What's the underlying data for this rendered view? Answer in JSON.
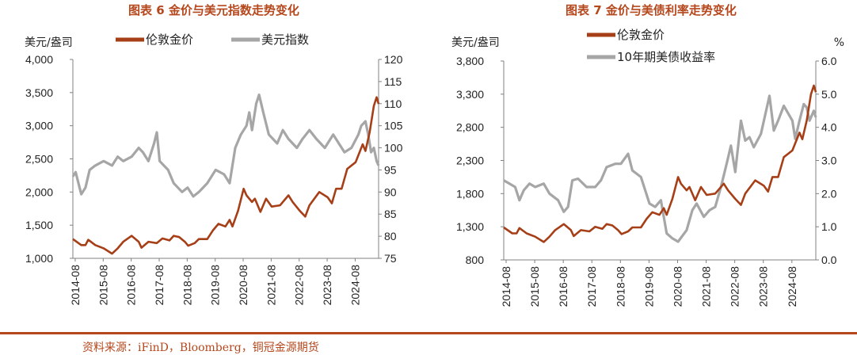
{
  "titles": {
    "chart1": "图表 6  金价与美元指数走势变化",
    "chart2": "图表 7 金价与美债利率走势变化"
  },
  "source": "资料来源：iFinD，Bloomberg，铜冠金源期货",
  "colors": {
    "gold": "#a63f17",
    "gray": "#a6a6a6",
    "title": "#b5471d"
  },
  "chart_data": [
    {
      "type": "line",
      "left_unit": "美元/盎司",
      "right_unit": "",
      "legend": [
        "伦敦金价",
        "美元指数"
      ],
      "x_ticks": [
        "2014-08",
        "2015-08",
        "2016-08",
        "2017-08",
        "2018-08",
        "2019-08",
        "2020-08",
        "2021-08",
        "2022-08",
        "2023-08",
        "2024-08"
      ],
      "x_range": [
        2014.5,
        2025.42
      ],
      "left_axis": {
        "ticks": [
          "1,000",
          "1,500",
          "2,000",
          "2,500",
          "3,000",
          "3,500",
          "4,000"
        ],
        "range": [
          1000,
          4000
        ]
      },
      "right_axis": {
        "ticks": [
          "75",
          "80",
          "85",
          "90",
          "95",
          "100",
          "105",
          "110",
          "115",
          "120"
        ],
        "range": [
          75,
          120
        ]
      },
      "series": [
        {
          "name": "伦敦金价",
          "axis": "left",
          "points": [
            [
              2014.5,
              1290
            ],
            [
              2014.8,
              1200
            ],
            [
              2014.95,
              1200
            ],
            [
              2015.05,
              1280
            ],
            [
              2015.3,
              1200
            ],
            [
              2015.6,
              1150
            ],
            [
              2015.9,
              1070
            ],
            [
              2016.1,
              1150
            ],
            [
              2016.3,
              1250
            ],
            [
              2016.6,
              1340
            ],
            [
              2016.85,
              1250
            ],
            [
              2016.95,
              1160
            ],
            [
              2017.2,
              1250
            ],
            [
              2017.5,
              1230
            ],
            [
              2017.7,
              1300
            ],
            [
              2017.95,
              1270
            ],
            [
              2018.1,
              1340
            ],
            [
              2018.3,
              1320
            ],
            [
              2018.5,
              1250
            ],
            [
              2018.62,
              1190
            ],
            [
              2018.85,
              1230
            ],
            [
              2019.0,
              1290
            ],
            [
              2019.3,
              1290
            ],
            [
              2019.5,
              1420
            ],
            [
              2019.7,
              1520
            ],
            [
              2019.95,
              1480
            ],
            [
              2020.1,
              1580
            ],
            [
              2020.2,
              1480
            ],
            [
              2020.4,
              1720
            ],
            [
              2020.6,
              2050
            ],
            [
              2020.7,
              1950
            ],
            [
              2020.9,
              1850
            ],
            [
              2021.0,
              1900
            ],
            [
              2021.2,
              1700
            ],
            [
              2021.4,
              1900
            ],
            [
              2021.6,
              1780
            ],
            [
              2021.9,
              1800
            ],
            [
              2022.2,
              1950
            ],
            [
              2022.35,
              1850
            ],
            [
              2022.6,
              1720
            ],
            [
              2022.8,
              1630
            ],
            [
              2022.95,
              1800
            ],
            [
              2023.3,
              2000
            ],
            [
              2023.6,
              1920
            ],
            [
              2023.75,
              1830
            ],
            [
              2023.9,
              2050
            ],
            [
              2024.1,
              2050
            ],
            [
              2024.3,
              2350
            ],
            [
              2024.6,
              2450
            ],
            [
              2024.85,
              2720
            ],
            [
              2024.95,
              2620
            ],
            [
              2025.1,
              2900
            ],
            [
              2025.25,
              3300
            ],
            [
              2025.35,
              3430
            ],
            [
              2025.42,
              3330
            ]
          ]
        },
        {
          "name": "美元指数",
          "axis": "right",
          "points": [
            [
              2014.5,
              93.5
            ],
            [
              2014.6,
              94.5
            ],
            [
              2014.8,
              89.5
            ],
            [
              2014.95,
              91
            ],
            [
              2015.1,
              95
            ],
            [
              2015.3,
              96
            ],
            [
              2015.6,
              97
            ],
            [
              2015.9,
              96
            ],
            [
              2016.1,
              98
            ],
            [
              2016.3,
              97
            ],
            [
              2016.6,
              98
            ],
            [
              2016.85,
              100
            ],
            [
              2017.0,
              99
            ],
            [
              2017.2,
              97
            ],
            [
              2017.4,
              101
            ],
            [
              2017.5,
              103.5
            ],
            [
              2017.6,
              97
            ],
            [
              2017.9,
              95
            ],
            [
              2018.1,
              92
            ],
            [
              2018.4,
              90
            ],
            [
              2018.6,
              91
            ],
            [
              2018.8,
              89
            ],
            [
              2019.0,
              90
            ],
            [
              2019.3,
              92
            ],
            [
              2019.6,
              95
            ],
            [
              2019.9,
              94
            ],
            [
              2020.1,
              92
            ],
            [
              2020.3,
              100
            ],
            [
              2020.5,
              103
            ],
            [
              2020.7,
              105
            ],
            [
              2020.8,
              108
            ],
            [
              2020.9,
              104
            ],
            [
              2021.05,
              110
            ],
            [
              2021.15,
              112
            ],
            [
              2021.3,
              108
            ],
            [
              2021.5,
              103
            ],
            [
              2021.8,
              101
            ],
            [
              2022.0,
              104
            ],
            [
              2022.2,
              102
            ],
            [
              2022.5,
              100
            ],
            [
              2022.7,
              102
            ],
            [
              2022.95,
              104
            ],
            [
              2023.2,
              102
            ],
            [
              2023.5,
              100
            ],
            [
              2023.8,
              103
            ],
            [
              2024.0,
              101
            ],
            [
              2024.2,
              99
            ],
            [
              2024.45,
              100
            ],
            [
              2024.7,
              103
            ],
            [
              2024.8,
              105
            ],
            [
              2024.95,
              106
            ],
            [
              2025.05,
              103
            ],
            [
              2025.15,
              99
            ],
            [
              2025.25,
              100
            ],
            [
              2025.35,
              97
            ],
            [
              2025.42,
              96
            ]
          ]
        }
      ]
    },
    {
      "type": "line",
      "left_unit": "美元/盎司",
      "right_unit": "%",
      "legend": [
        "伦敦金价",
        "10年期美债收益率"
      ],
      "x_ticks": [
        "2014-08",
        "2015-08",
        "2016-08",
        "2017-08",
        "2018-08",
        "2019-08",
        "2020-08",
        "2021-08",
        "2022-08",
        "2023-08",
        "2024-08"
      ],
      "x_range": [
        2014.5,
        2025.42
      ],
      "left_axis": {
        "ticks": [
          "800",
          "1,300",
          "1,800",
          "2,300",
          "2,800",
          "3,300",
          "3,800"
        ],
        "range": [
          800,
          3800
        ]
      },
      "right_axis": {
        "ticks": [
          "0.0",
          "1.0",
          "2.0",
          "3.0",
          "4.0",
          "5.0",
          "6.0"
        ],
        "range": [
          0,
          6
        ]
      },
      "series": [
        {
          "name": "伦敦金价",
          "axis": "left",
          "points": [
            [
              2014.5,
              1290
            ],
            [
              2014.8,
              1200
            ],
            [
              2014.95,
              1200
            ],
            [
              2015.05,
              1280
            ],
            [
              2015.3,
              1200
            ],
            [
              2015.6,
              1150
            ],
            [
              2015.9,
              1070
            ],
            [
              2016.1,
              1150
            ],
            [
              2016.3,
              1250
            ],
            [
              2016.6,
              1340
            ],
            [
              2016.85,
              1250
            ],
            [
              2016.95,
              1160
            ],
            [
              2017.2,
              1250
            ],
            [
              2017.5,
              1230
            ],
            [
              2017.7,
              1300
            ],
            [
              2017.95,
              1270
            ],
            [
              2018.1,
              1340
            ],
            [
              2018.3,
              1320
            ],
            [
              2018.5,
              1250
            ],
            [
              2018.62,
              1190
            ],
            [
              2018.85,
              1230
            ],
            [
              2019.0,
              1290
            ],
            [
              2019.3,
              1290
            ],
            [
              2019.5,
              1420
            ],
            [
              2019.7,
              1520
            ],
            [
              2019.95,
              1480
            ],
            [
              2020.1,
              1580
            ],
            [
              2020.2,
              1480
            ],
            [
              2020.4,
              1720
            ],
            [
              2020.6,
              2050
            ],
            [
              2020.7,
              1950
            ],
            [
              2020.9,
              1850
            ],
            [
              2021.0,
              1900
            ],
            [
              2021.2,
              1700
            ],
            [
              2021.4,
              1900
            ],
            [
              2021.6,
              1780
            ],
            [
              2021.9,
              1800
            ],
            [
              2022.2,
              1950
            ],
            [
              2022.35,
              1850
            ],
            [
              2022.6,
              1720
            ],
            [
              2022.8,
              1630
            ],
            [
              2022.95,
              1800
            ],
            [
              2023.3,
              2000
            ],
            [
              2023.6,
              1920
            ],
            [
              2023.75,
              1830
            ],
            [
              2023.9,
              2050
            ],
            [
              2024.1,
              2050
            ],
            [
              2024.3,
              2350
            ],
            [
              2024.6,
              2450
            ],
            [
              2024.85,
              2720
            ],
            [
              2024.95,
              2620
            ],
            [
              2025.1,
              2900
            ],
            [
              2025.25,
              3300
            ],
            [
              2025.35,
              3430
            ],
            [
              2025.42,
              3330
            ]
          ]
        },
        {
          "name": "10年期美债收益率",
          "axis": "right",
          "points": [
            [
              2014.5,
              2.4
            ],
            [
              2014.7,
              2.3
            ],
            [
              2014.9,
              2.2
            ],
            [
              2015.05,
              1.8
            ],
            [
              2015.2,
              2.1
            ],
            [
              2015.4,
              2.3
            ],
            [
              2015.6,
              2.2
            ],
            [
              2015.9,
              2.3
            ],
            [
              2016.1,
              2.0
            ],
            [
              2016.4,
              1.8
            ],
            [
              2016.6,
              1.45
            ],
            [
              2016.75,
              1.6
            ],
            [
              2016.9,
              2.4
            ],
            [
              2017.1,
              2.45
            ],
            [
              2017.4,
              2.2
            ],
            [
              2017.7,
              2.2
            ],
            [
              2017.9,
              2.4
            ],
            [
              2018.1,
              2.8
            ],
            [
              2018.4,
              2.9
            ],
            [
              2018.6,
              2.9
            ],
            [
              2018.85,
              3.2
            ],
            [
              2019.0,
              2.7
            ],
            [
              2019.3,
              2.5
            ],
            [
              2019.6,
              1.7
            ],
            [
              2019.8,
              1.6
            ],
            [
              2020.0,
              1.8
            ],
            [
              2020.2,
              0.8
            ],
            [
              2020.4,
              0.65
            ],
            [
              2020.6,
              0.55
            ],
            [
              2020.9,
              0.9
            ],
            [
              2021.1,
              1.5
            ],
            [
              2021.25,
              1.7
            ],
            [
              2021.5,
              1.3
            ],
            [
              2021.7,
              1.5
            ],
            [
              2021.9,
              1.6
            ],
            [
              2022.1,
              2.2
            ],
            [
              2022.3,
              2.9
            ],
            [
              2022.45,
              3.45
            ],
            [
              2022.6,
              2.65
            ],
            [
              2022.8,
              4.2
            ],
            [
              2022.95,
              3.6
            ],
            [
              2023.1,
              3.7
            ],
            [
              2023.25,
              3.4
            ],
            [
              2023.5,
              3.8
            ],
            [
              2023.8,
              4.95
            ],
            [
              2023.95,
              3.9
            ],
            [
              2024.1,
              4.2
            ],
            [
              2024.3,
              4.65
            ],
            [
              2024.6,
              4.2
            ],
            [
              2024.7,
              3.65
            ],
            [
              2024.85,
              4.2
            ],
            [
              2025.0,
              4.7
            ],
            [
              2025.1,
              4.6
            ],
            [
              2025.2,
              4.2
            ],
            [
              2025.35,
              4.5
            ],
            [
              2025.42,
              4.3
            ]
          ]
        }
      ]
    }
  ]
}
